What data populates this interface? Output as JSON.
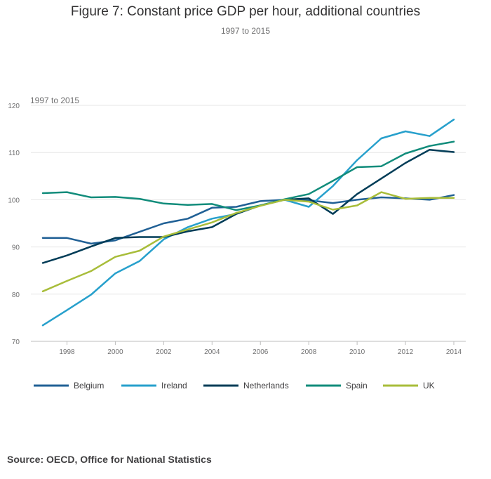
{
  "chart_data": {
    "type": "line",
    "title": "Figure 7: Constant price GDP per hour, additional countries",
    "subtitle": "1997 to 2015",
    "ylabel": "1997 to 2015",
    "xlabel": "",
    "ylim": [
      70,
      120
    ],
    "xlim": [
      1997,
      2014
    ],
    "yticks": [
      70,
      80,
      90,
      100,
      110,
      120
    ],
    "xticks": [
      1998,
      2000,
      2002,
      2004,
      2006,
      2008,
      2010,
      2012,
      2014
    ],
    "grid": "horizontal",
    "legend_position": "bottom",
    "x": [
      1997,
      1998,
      1999,
      2000,
      2001,
      2002,
      2003,
      2004,
      2005,
      2006,
      2007,
      2008,
      2009,
      2010,
      2011,
      2012,
      2013,
      2014
    ],
    "series": [
      {
        "name": "Belgium",
        "color": "#206095",
        "values": [
          91.9,
          91.9,
          90.7,
          91.4,
          93.2,
          95.0,
          96.0,
          98.3,
          98.5,
          99.7,
          100.0,
          99.9,
          99.3,
          100.0,
          100.5,
          100.3,
          100.0,
          101.0
        ]
      },
      {
        "name": "Ireland",
        "color": "#27a0cc",
        "values": [
          73.4,
          76.6,
          79.9,
          84.4,
          87.0,
          91.6,
          94.2,
          96.0,
          97.0,
          98.8,
          100.0,
          98.5,
          102.9,
          108.4,
          113.0,
          114.5,
          113.5,
          117.0
        ]
      },
      {
        "name": "Netherlands",
        "color": "#003c57",
        "values": [
          86.6,
          88.2,
          90.1,
          91.9,
          92.1,
          92.1,
          93.3,
          94.2,
          97.0,
          98.8,
          100.0,
          100.3,
          97.0,
          101.2,
          104.5,
          107.8,
          110.6,
          110.1
        ]
      },
      {
        "name": "Spain",
        "color": "#118c7b",
        "values": [
          101.4,
          101.6,
          100.5,
          100.6,
          100.2,
          99.2,
          98.9,
          99.1,
          97.8,
          98.8,
          100.1,
          101.2,
          104.0,
          106.9,
          107.1,
          109.8,
          111.4,
          112.3
        ]
      },
      {
        "name": "UK",
        "color": "#a8bd3a",
        "values": [
          80.6,
          82.8,
          84.9,
          87.9,
          89.2,
          92.2,
          93.7,
          95.2,
          97.2,
          98.7,
          100.0,
          99.6,
          97.9,
          98.8,
          101.6,
          100.2,
          100.4,
          100.4
        ]
      }
    ]
  },
  "source": "Source: OECD, Office for National Statistics"
}
